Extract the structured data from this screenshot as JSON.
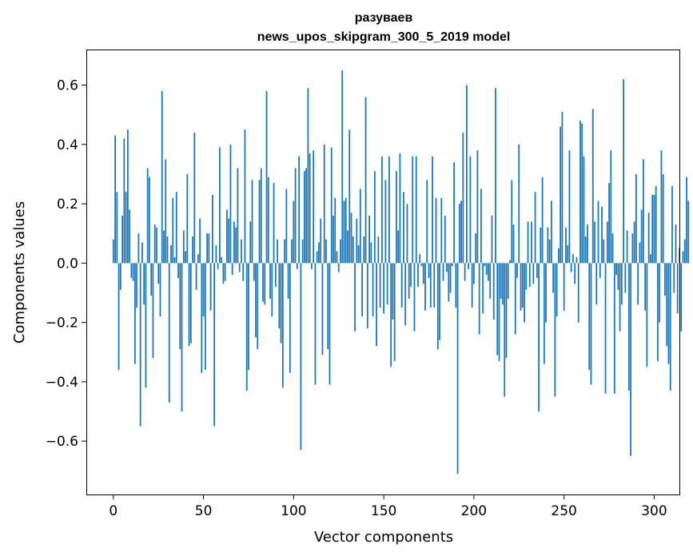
{
  "chart_data": {
    "type": "bar",
    "title": "разуваев",
    "subtitle": "news_upos_skipgram_300_5_2019 model",
    "xlabel": "Vector components",
    "ylabel": "Components values",
    "xlim": [
      -15,
      314
    ],
    "ylim": [
      -0.78,
      0.72
    ],
    "xticks": [
      0,
      50,
      100,
      150,
      200,
      250,
      300
    ],
    "xtick_labels": [
      "0",
      "50",
      "100",
      "150",
      "200",
      "250",
      "300"
    ],
    "yticks": [
      -0.6,
      -0.4,
      -0.2,
      0.0,
      0.2,
      0.4,
      0.6
    ],
    "ytick_labels": [
      "−0.6",
      "−0.4",
      "−0.2",
      "0.0",
      "0.2",
      "0.4",
      "0.6"
    ],
    "grid": false,
    "bar_color": "#1f77b4",
    "values": [
      0.08,
      0.43,
      0.24,
      -0.36,
      -0.09,
      0.16,
      0.42,
      0.24,
      0.45,
      0.18,
      -0.05,
      -0.06,
      -0.34,
      -0.15,
      0.1,
      -0.55,
      0.07,
      -0.14,
      -0.42,
      0.32,
      0.29,
      -0.11,
      -0.32,
      0.13,
      0.12,
      -0.07,
      -0.18,
      0.58,
      0.11,
      0.35,
      0.09,
      -0.47,
      0.06,
      0.22,
      0.02,
      0.24,
      -0.05,
      -0.29,
      -0.5,
      0.11,
      0.04,
      0.3,
      -0.28,
      -0.27,
      0.09,
      0.44,
      -0.09,
      0.03,
      0.15,
      -0.37,
      -0.18,
      -0.36,
      0.1,
      0.1,
      -0.16,
      0.23,
      -0.55,
      0.06,
      -0.02,
      0.39,
      0.02,
      -0.07,
      -0.06,
      0.18,
      0.15,
      0.4,
      -0.04,
      0.14,
      0.12,
      0.32,
      -0.03,
      0.08,
      -0.06,
      0.45,
      -0.43,
      -0.36,
      0.14,
      0.28,
      -0.06,
      -0.25,
      -0.29,
      0.28,
      0.32,
      -0.13,
      -0.14,
      0.58,
      0.29,
      -0.12,
      -0.18,
      0.27,
      -0.08,
      0.08,
      -0.22,
      -0.27,
      -0.42,
      0.08,
      0.25,
      -0.12,
      -0.37,
      0.08,
      0.21,
      0.32,
      -0.02,
      0.36,
      -0.63,
      0.08,
      0.31,
      0.32,
      0.59,
      0.37,
      -0.02,
      0.38,
      -0.41,
      0.04,
      0.07,
      0.15,
      -0.31,
      0.4,
      0.08,
      -0.29,
      -0.41,
      0.39,
      0.16,
      0.22,
      0.04,
      -0.03,
      0.08,
      0.65,
      0.21,
      0.22,
      0.11,
      0.45,
      0.17,
      0.09,
      -0.23,
      0.15,
      0.06,
      0.25,
      -0.18,
      0.09,
      0.56,
      -0.22,
      0.16,
      0.07,
      -0.18,
      0.31,
      -0.28,
      0.09,
      -0.15,
      0.36,
      -0.17,
      0.28,
      -0.14,
      0.36,
      -0.35,
      -0.19,
      -0.33,
      0.31,
      0.11,
      0.37,
      -0.15,
      0.24,
      -0.21,
      0.2,
      -0.12,
      -0.08,
      0.36,
      -0.23,
      0.36,
      -0.08,
      0.03,
      -0.01,
      -0.07,
      -0.16,
      0.28,
      -0.05,
      -0.15,
      0.36,
      -0.15,
      0.22,
      -0.29,
      -0.26,
      0.22,
      -0.06,
      0.16,
      -0.03,
      -0.13,
      -0.1,
      -0.01,
      0.34,
      -0.15,
      -0.71,
      0.2,
      0.21,
      0.44,
      -0.06,
      0.6,
      -0.02,
      0.36,
      -0.15,
      -0.07,
      0.1,
      0.38,
      -0.24,
      0.25,
      -0.17,
      -0.01,
      -0.04,
      -0.06,
      -0.12,
      0.16,
      -0.19,
      0.59,
      -0.31,
      -0.33,
      -0.12,
      -0.14,
      -0.45,
      -0.32,
      -0.12,
      0.01,
      0.28,
      0.13,
      -0.24,
      -0.05,
      0.4,
      -0.16,
      -0.15,
      -0.2,
      -0.09,
      0.14,
      -0.08,
      0.14,
      -0.07,
      0.24,
      -0.05,
      -0.5,
      0.12,
      0.29,
      -0.34,
      -0.2,
      0.12,
      0.08,
      0.21,
      -0.1,
      -0.45,
      -0.18,
      0.05,
      0.46,
      0.51,
      -0.16,
      0.12,
      0.06,
      0.38,
      -0.03,
      0.03,
      -0.07,
      0.02,
      -0.2,
      0.48,
      0.47,
      0.36,
      0.09,
      0.13,
      -0.36,
      -0.41,
      0.52,
      0.14,
      -0.14,
      0.21,
      -0.05,
      0.19,
      0.08,
      -0.44,
      0.14,
      0.27,
      0.38,
      0.1,
      -0.44,
      -0.04,
      -0.09,
      -0.23,
      -0.14,
      0.62,
      -0.1,
      0.11,
      -0.43,
      -0.65,
      0.1,
      0.14,
      0.3,
      -0.14,
      0.07,
      0.18,
      0.35,
      -0.16,
      -0.35,
      0.17,
      0.03,
      0.23,
      0.23,
      0.26,
      -0.33,
      -0.2,
      0.38,
      0.3,
      -0.11,
      -0.28,
      -0.34,
      -0.43,
      0.26,
      -0.1,
      0.13,
      -0.17,
      0.05,
      -0.23,
      0.04,
      0.08,
      0.29,
      0.21
    ]
  }
}
